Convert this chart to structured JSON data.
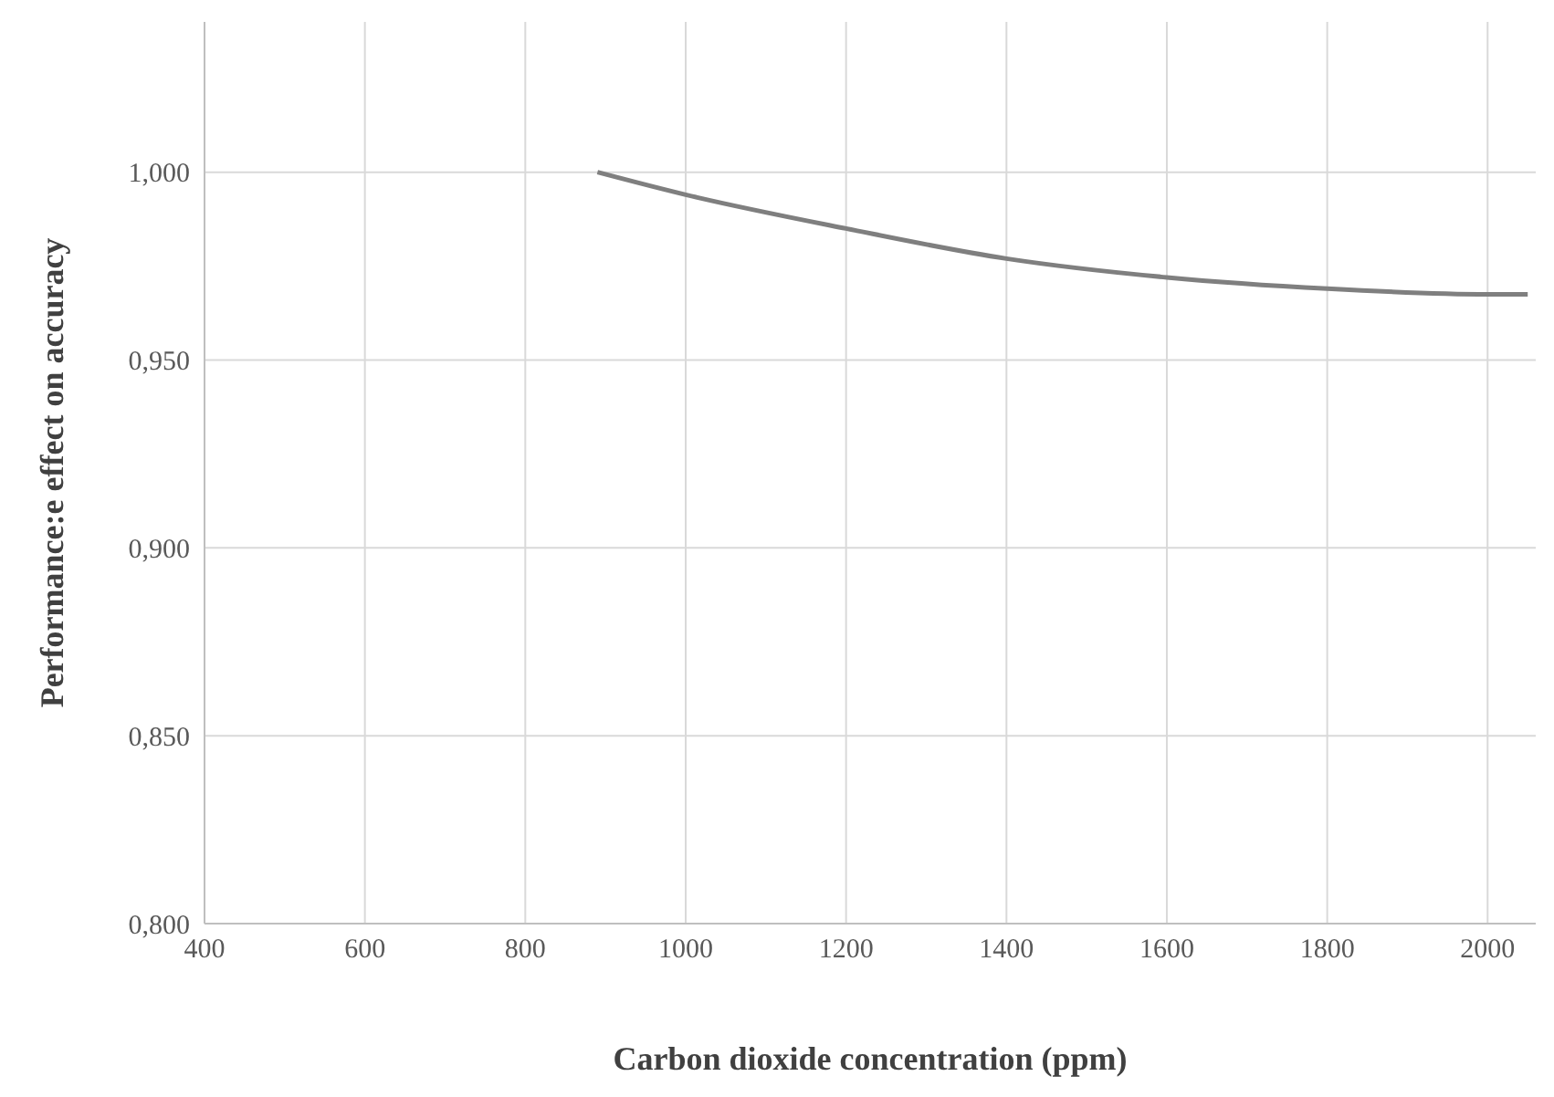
{
  "chart_data": {
    "type": "line",
    "xlabel": "Carbon dioxide concentration (ppm)",
    "ylabel": "Performance:e effect on accuracy",
    "x": [
      890,
      1000,
      1200,
      1400,
      1600,
      1800,
      2000,
      2050
    ],
    "series": [
      {
        "color": "#7f7f7f",
        "values": [
          1.0,
          0.994,
          0.985,
          0.977,
          0.972,
          0.969,
          0.9675,
          0.9675
        ]
      }
    ],
    "xlim": [
      400,
      2060
    ],
    "xticks": [
      400,
      600,
      800,
      1000,
      1200,
      1400,
      1600,
      1800,
      2000
    ],
    "ylim": [
      0.8,
      1.04
    ],
    "yticks": [
      {
        "value": 0.8,
        "label": "0,800"
      },
      {
        "value": 0.85,
        "label": "0,850"
      },
      {
        "value": 0.9,
        "label": "0,900"
      },
      {
        "value": 0.95,
        "label": "0,950"
      },
      {
        "value": 1.0,
        "label": "1,000"
      }
    ],
    "grid": true,
    "legend": false,
    "marker": "none",
    "line_style": "solid"
  }
}
